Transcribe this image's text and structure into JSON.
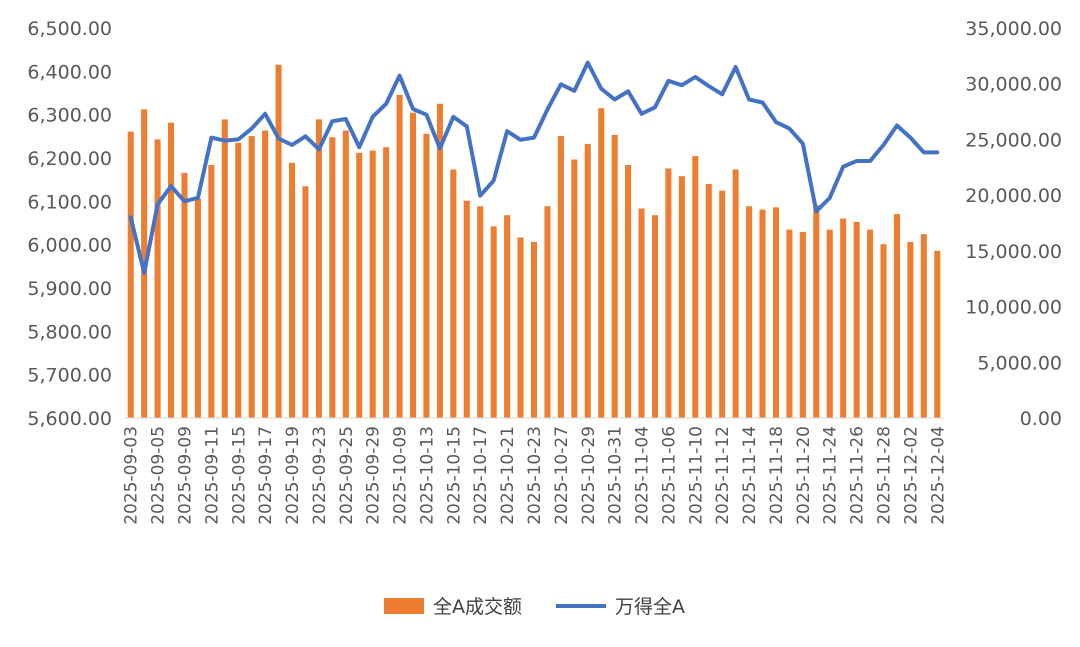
{
  "chart_data": {
    "type": "bar+line",
    "title": "",
    "xlabel": "",
    "ylabel": "",
    "y_left": {
      "range": [
        5600,
        6500
      ],
      "ticks": [
        "5,600.00",
        "5,700.00",
        "5,800.00",
        "5,900.00",
        "6,000.00",
        "6,100.00",
        "6,200.00",
        "6,300.00",
        "6,400.00",
        "6,500.00"
      ]
    },
    "y_right": {
      "range": [
        0,
        35000
      ],
      "ticks": [
        "0.00",
        "5,000.00",
        "10,000.00",
        "15,000.00",
        "20,000.00",
        "25,000.00",
        "30,000.00",
        "35,000.00"
      ]
    },
    "grid": false,
    "legend_position": "bottom",
    "dates": [
      "2025-09-03",
      "2025-09-04",
      "2025-09-05",
      "2025-09-08",
      "2025-09-09",
      "2025-09-10",
      "2025-09-11",
      "2025-09-12",
      "2025-09-15",
      "2025-09-16",
      "2025-09-17",
      "2025-09-18",
      "2025-09-19",
      "2025-09-22",
      "2025-09-23",
      "2025-09-24",
      "2025-09-25",
      "2025-09-26",
      "2025-09-29",
      "2025-09-30",
      "2025-10-09",
      "2025-10-10",
      "2025-10-13",
      "2025-10-14",
      "2025-10-15",
      "2025-10-16",
      "2025-10-17",
      "2025-10-20",
      "2025-10-21",
      "2025-10-22",
      "2025-10-23",
      "2025-10-24",
      "2025-10-27",
      "2025-10-28",
      "2025-10-29",
      "2025-10-30",
      "2025-10-31",
      "2025-11-03",
      "2025-11-04",
      "2025-11-05",
      "2025-11-06",
      "2025-11-07",
      "2025-11-10",
      "2025-11-11",
      "2025-11-12",
      "2025-11-13",
      "2025-11-14",
      "2025-11-17",
      "2025-11-18",
      "2025-11-19",
      "2025-11-20",
      "2025-11-21",
      "2025-11-24",
      "2025-11-25",
      "2025-11-26",
      "2025-11-27",
      "2025-11-28",
      "2025-12-01",
      "2025-12-02",
      "2025-12-03",
      "2025-12-04"
    ],
    "x_tick_labels": [
      "2025-09-03",
      "2025-09-05",
      "2025-09-09",
      "2025-09-11",
      "2025-09-15",
      "2025-09-17",
      "2025-09-19",
      "2025-09-23",
      "2025-09-25",
      "2025-09-29",
      "2025-10-09",
      "2025-10-13",
      "2025-10-15",
      "2025-10-17",
      "2025-10-21",
      "2025-10-23",
      "2025-10-27",
      "2025-10-29",
      "2025-10-31",
      "2025-11-04",
      "2025-11-06",
      "2025-11-10",
      "2025-11-12",
      "2025-11-14",
      "2025-11-18",
      "2025-11-20",
      "2025-11-24",
      "2025-11-26",
      "2025-11-28",
      "2025-12-02",
      "2025-12-04"
    ],
    "series": [
      {
        "name": "全A成交额",
        "type": "bar",
        "axis": "right",
        "color": "#ED7D31",
        "values": [
          25700,
          27700,
          25000,
          26500,
          22000,
          19700,
          22700,
          26800,
          24700,
          25300,
          25800,
          31700,
          22900,
          20800,
          26800,
          25200,
          25800,
          23800,
          24000,
          24300,
          29000,
          27400,
          25500,
          28200,
          22300,
          19500,
          19000,
          17200,
          18200,
          16200,
          15800,
          19000,
          25300,
          23200,
          24600,
          27800,
          25400,
          22700,
          18800,
          18200,
          22400,
          21700,
          23500,
          21000,
          20400,
          22300,
          19000,
          18700,
          18900,
          16900,
          16700,
          19100,
          16900,
          17900,
          17600,
          16900,
          15600,
          18300,
          15800,
          16500,
          15000
        ]
      },
      {
        "name": "万得全A",
        "type": "line",
        "axis": "left",
        "color": "#4472C4",
        "values": [
          6063,
          5935,
          6093,
          6135,
          6100,
          6108,
          6247,
          6240,
          6243,
          6268,
          6302,
          6245,
          6230,
          6250,
          6220,
          6285,
          6290,
          6225,
          6295,
          6325,
          6390,
          6313,
          6300,
          6222,
          6295,
          6273,
          6113,
          6148,
          6262,
          6242,
          6247,
          6312,
          6370,
          6355,
          6420,
          6360,
          6335,
          6354,
          6302,
          6317,
          6378,
          6368,
          6387,
          6366,
          6347,
          6410,
          6335,
          6328,
          6283,
          6268,
          6233,
          6077,
          6108,
          6180,
          6193,
          6193,
          6230,
          6275,
          6247,
          6213,
          6213
        ]
      }
    ]
  },
  "legend": {
    "bar_label": "全A成交额",
    "line_label": "万得全A"
  }
}
